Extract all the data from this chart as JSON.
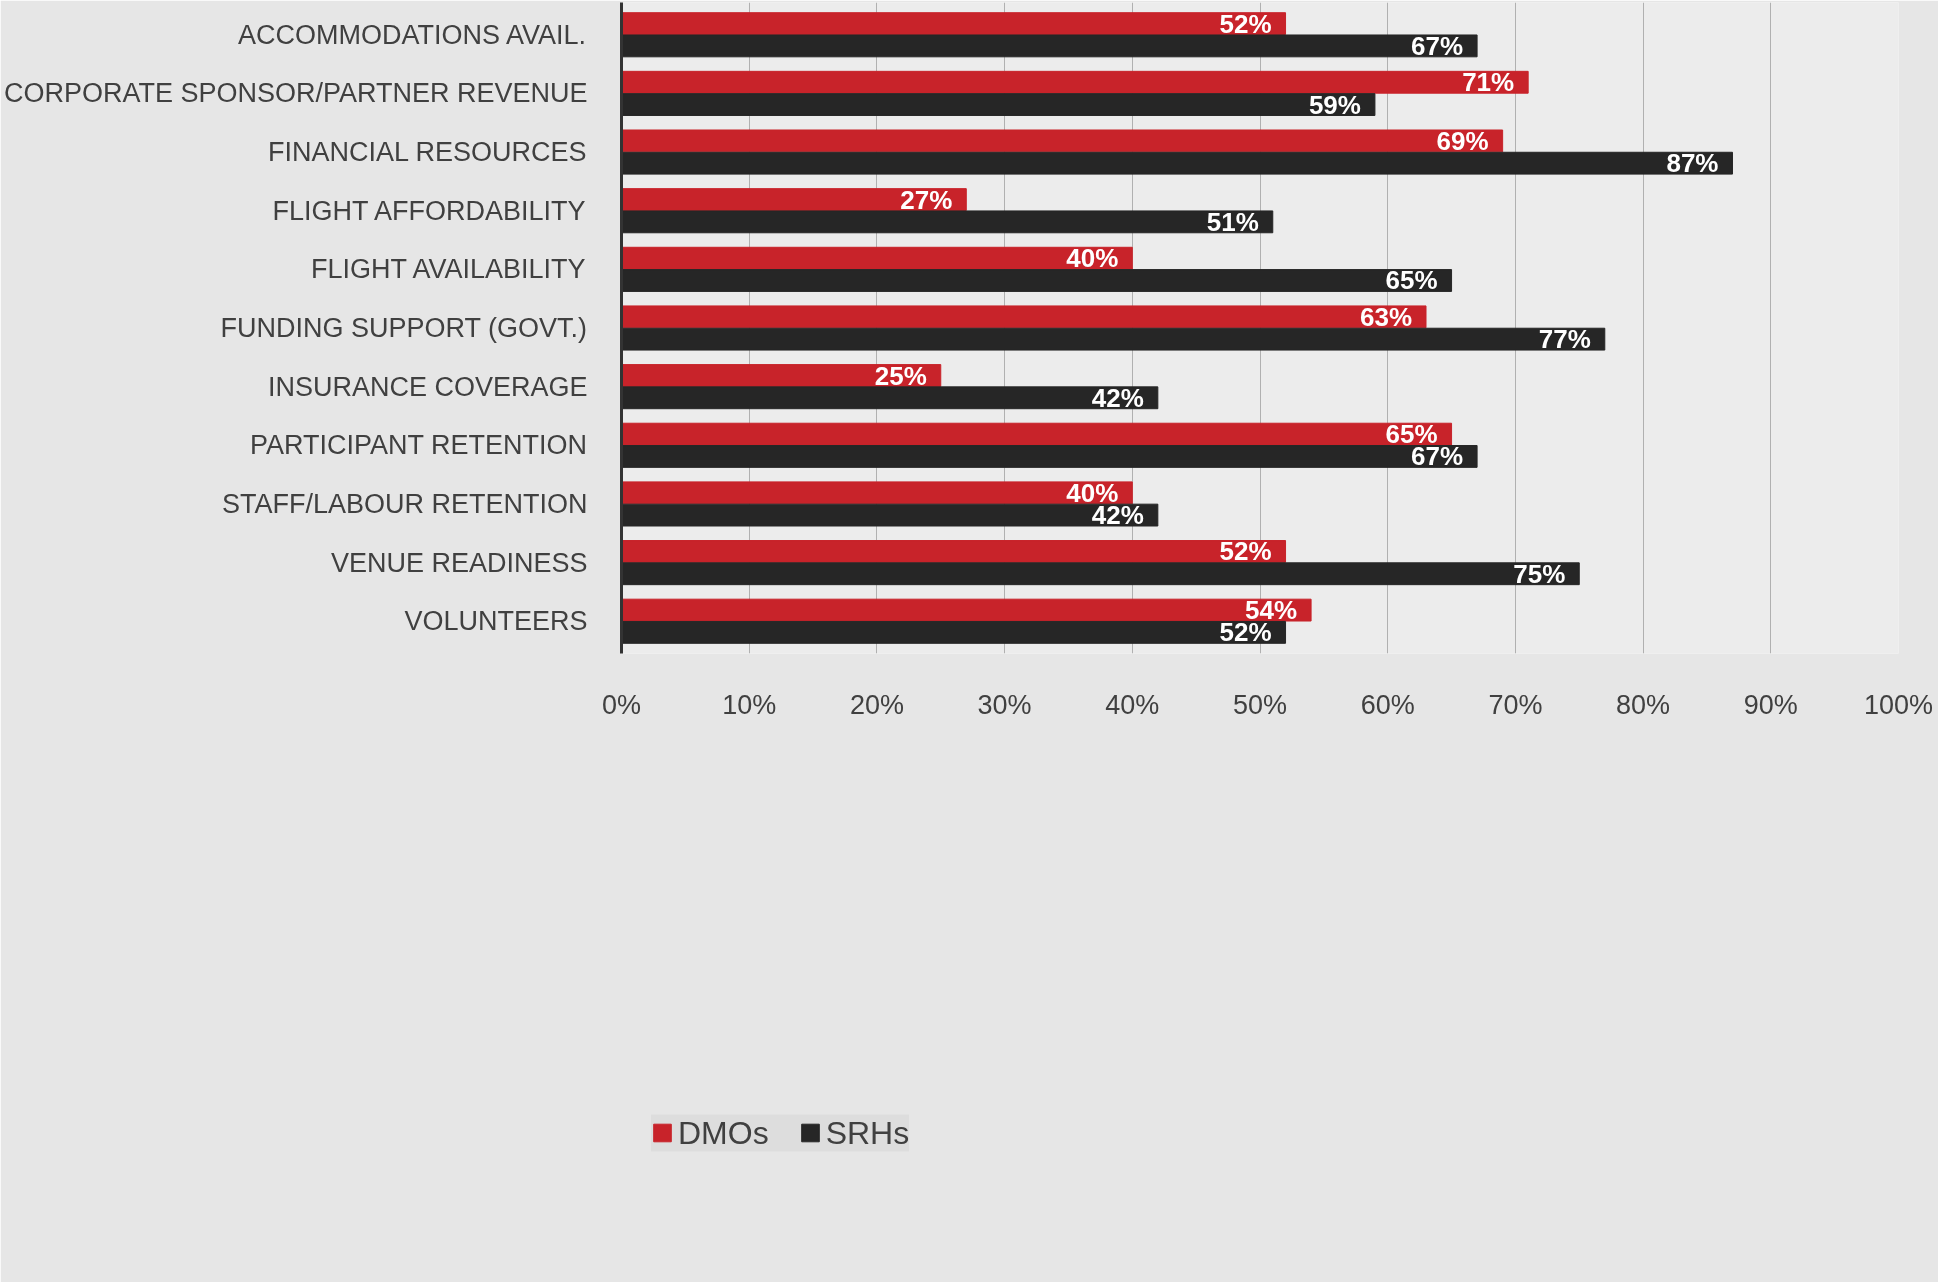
{
  "chart_data": {
    "type": "bar",
    "orientation": "horizontal",
    "categories": [
      "ACCOMMODATIONS AVAIL.",
      "CORPORATE SPONSOR/PARTNER REVENUE",
      "FINANCIAL RESOURCES",
      "FLIGHT AFFORDABILITY",
      "FLIGHT AVAILABILITY",
      "FUNDING SUPPORT (GOVT.)",
      "INSURANCE COVERAGE",
      "PARTICIPANT RETENTION",
      "STAFF/LABOUR RETENTION",
      "VENUE READINESS",
      "VOLUNTEERS"
    ],
    "series": [
      {
        "name": "DMOs",
        "color": "#c8232a",
        "values": [
          52,
          71,
          69,
          27,
          40,
          63,
          25,
          65,
          40,
          52,
          54
        ],
        "value_labels": [
          "52%",
          "71%",
          "69%",
          "27%",
          "40%",
          "63%",
          "25%",
          "65%",
          "40%",
          "52%",
          "54%"
        ]
      },
      {
        "name": "SRHs",
        "color": "#262626",
        "values": [
          67,
          59,
          87,
          51,
          65,
          77,
          42,
          67,
          42,
          75,
          52
        ],
        "value_labels": [
          "67%",
          "59%",
          "87%",
          "51%",
          "65%",
          "77%",
          "42%",
          "67%",
          "42%",
          "75%",
          "52%"
        ]
      }
    ],
    "xlim": [
      0,
      100
    ],
    "xticks": [
      {
        "value": 0,
        "label": "0%"
      },
      {
        "value": 10,
        "label": "10%"
      },
      {
        "value": 20,
        "label": "20%"
      },
      {
        "value": 30,
        "label": "30%"
      },
      {
        "value": 40,
        "label": "40%"
      },
      {
        "value": 50,
        "label": "50%"
      },
      {
        "value": 60,
        "label": "60%"
      },
      {
        "value": 70,
        "label": "70%"
      },
      {
        "value": 80,
        "label": "80%"
      },
      {
        "value": 90,
        "label": "90%"
      },
      {
        "value": 100,
        "label": "100%"
      }
    ],
    "grid": "x",
    "legend": "bottom"
  }
}
